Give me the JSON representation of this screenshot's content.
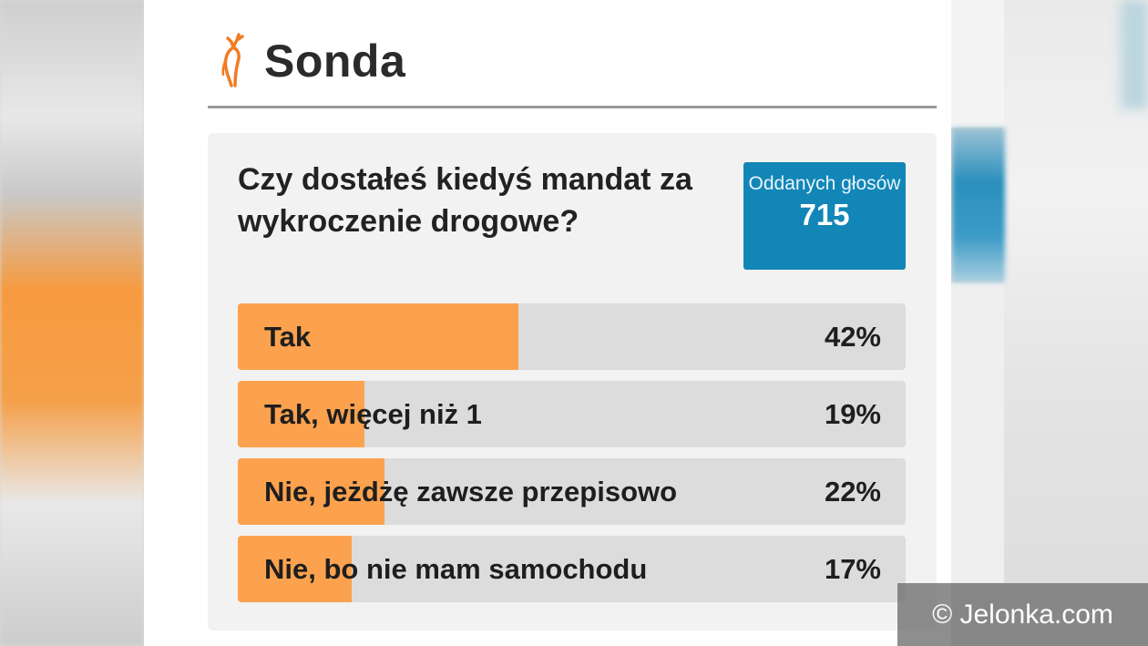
{
  "header": {
    "title": "Sonda",
    "logo_icon": "deer-icon",
    "accent_color": "#f07c24"
  },
  "poll": {
    "question": "Czy dostałeś kiedyś mandat za wykroczenie drogowe?",
    "votes_label": "Oddanych głosów",
    "votes_count": "715",
    "options": [
      {
        "label": "Tak",
        "percent_text": "42%",
        "percent": 42
      },
      {
        "label": "Tak, więcej niż 1",
        "percent_text": "19%",
        "percent": 19
      },
      {
        "label": "Nie, jeżdżę zawsze przepisowo",
        "percent_text": "22%",
        "percent": 22
      },
      {
        "label": "Nie, bo nie mam samochodu",
        "percent_text": "17%",
        "percent": 17
      }
    ],
    "bar_color": "#fca24e",
    "track_color": "#dcdcdc",
    "votes_box_color": "#1286b7"
  },
  "watermark": {
    "text": "© Jelonka.com"
  }
}
